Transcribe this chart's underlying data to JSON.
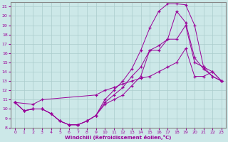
{
  "xlabel": "Windchill (Refroidissement éolien,°C)",
  "bg_color": "#cce8e8",
  "line_color": "#990099",
  "grid_color": "#aacccc",
  "xlim": [
    -0.5,
    23.5
  ],
  "ylim": [
    8,
    21.5
  ],
  "xticks": [
    0,
    1,
    2,
    3,
    4,
    5,
    6,
    7,
    8,
    9,
    10,
    11,
    12,
    13,
    14,
    15,
    16,
    17,
    18,
    19,
    20,
    21,
    22,
    23
  ],
  "yticks": [
    8,
    9,
    10,
    11,
    12,
    13,
    14,
    15,
    16,
    17,
    18,
    19,
    20,
    21
  ],
  "line1_x": [
    0,
    1,
    2,
    3,
    4,
    5,
    6,
    7,
    8,
    9,
    10,
    11,
    12,
    13,
    14,
    15,
    16,
    17,
    18,
    19,
    20,
    21,
    22,
    23
  ],
  "line1_y": [
    10.7,
    9.8,
    10.0,
    10.0,
    9.5,
    8.7,
    8.3,
    8.3,
    8.7,
    9.3,
    10.5,
    11.0,
    11.5,
    12.5,
    13.5,
    16.3,
    16.3,
    17.5,
    17.5,
    19.0,
    15.0,
    14.5,
    13.5,
    13.0
  ],
  "line2_x": [
    0,
    1,
    2,
    3,
    4,
    5,
    6,
    7,
    8,
    9,
    10,
    11,
    12,
    13,
    14,
    15,
    16,
    17,
    18,
    19,
    20,
    21,
    22,
    23
  ],
  "line2_y": [
    10.7,
    9.8,
    10.0,
    10.0,
    9.5,
    8.7,
    8.3,
    8.3,
    8.7,
    9.3,
    11.0,
    12.0,
    13.0,
    14.3,
    16.3,
    18.7,
    20.5,
    21.3,
    21.3,
    21.2,
    19.0,
    14.5,
    14.0,
    13.0
  ],
  "line3_x": [
    0,
    1,
    2,
    3,
    4,
    5,
    6,
    7,
    8,
    9,
    10,
    11,
    12,
    13,
    14,
    15,
    16,
    17,
    18,
    19,
    20,
    21,
    22,
    23
  ],
  "line3_y": [
    10.7,
    9.8,
    10.0,
    10.0,
    9.5,
    8.7,
    8.3,
    8.3,
    8.7,
    9.3,
    10.7,
    11.5,
    12.3,
    13.5,
    14.5,
    16.3,
    16.8,
    17.5,
    20.5,
    19.3,
    15.5,
    14.3,
    13.5,
    13.0
  ],
  "line4_x": [
    0,
    2,
    3,
    9,
    10,
    11,
    12,
    13,
    14,
    15,
    16,
    17,
    18,
    19,
    20,
    21,
    22,
    23
  ],
  "line4_y": [
    10.7,
    10.5,
    11.0,
    11.5,
    12.0,
    12.3,
    12.7,
    13.0,
    13.3,
    13.5,
    14.0,
    14.5,
    15.0,
    16.5,
    13.5,
    13.5,
    14.0,
    13.0
  ]
}
